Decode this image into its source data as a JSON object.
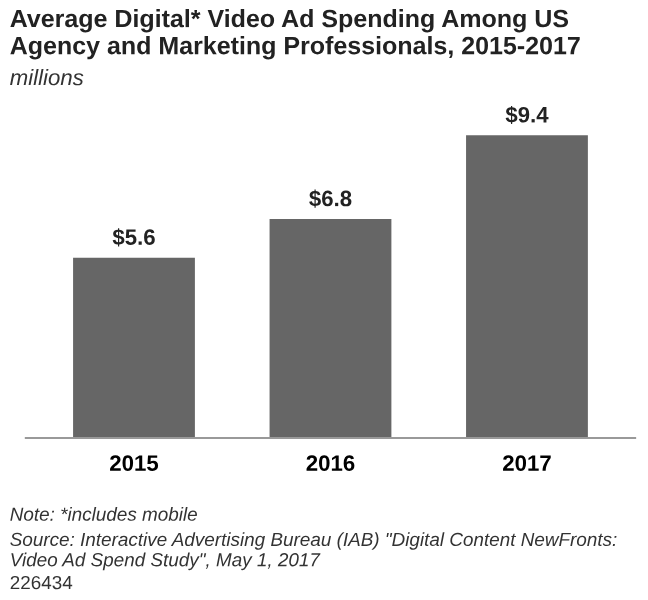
{
  "chart_data": {
    "type": "bar",
    "title": "Average Digital* Video Ad Spending Among US Agency and Marketing Professionals, 2015-2017",
    "subtitle": "millions",
    "categories": [
      "2015",
      "2016",
      "2017"
    ],
    "values": [
      5.6,
      6.8,
      9.4
    ],
    "color": "#666666",
    "data_labels": true,
    "value_labels": [
      "$5.6",
      "$6.8",
      "$9.4"
    ],
    "grid": false,
    "legend": false,
    "annotations": [
      "Note: *includes mobile",
      "Source: Interactive Advertising Bureau (IAB) \"Digital Content NewFronts: Video Ad Spend Study\", May 1, 2017",
      "226434"
    ]
  }
}
